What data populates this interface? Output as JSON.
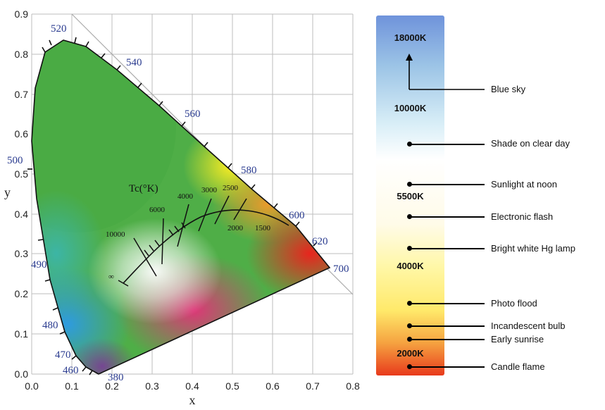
{
  "diagram": {
    "x_axis": {
      "label": "x",
      "ticks": [
        "0.0",
        "0.1",
        "0.2",
        "0.3",
        "0.4",
        "0.5",
        "0.6",
        "0.7",
        "0.8"
      ]
    },
    "y_axis": {
      "label": "y",
      "ticks": [
        "0.0",
        "0.1",
        "0.2",
        "0.3",
        "0.4",
        "0.5",
        "0.6",
        "0.7",
        "0.8",
        "0.9"
      ]
    },
    "wavelength_labels": [
      "380",
      "460",
      "470",
      "480",
      "490",
      "500",
      "520",
      "540",
      "560",
      "580",
      "600",
      "620",
      "700"
    ],
    "tc_label": "Tc(°K)",
    "cct_labels": [
      "10000",
      "6000",
      "4000",
      "3000",
      "2500",
      "2000",
      "1500",
      "∞"
    ]
  },
  "color_scale": {
    "kelvin_labels": [
      "18000K",
      "10000K",
      "5500K",
      "4000K",
      "2000K"
    ],
    "sources": [
      "Blue sky",
      "Shade on clear day",
      "Sunlight at noon",
      "Electronic flash",
      "Bright white Hg lamp",
      "Photo flood",
      "Incandescent bulb",
      "Early sunrise",
      "Candle flame"
    ]
  }
}
